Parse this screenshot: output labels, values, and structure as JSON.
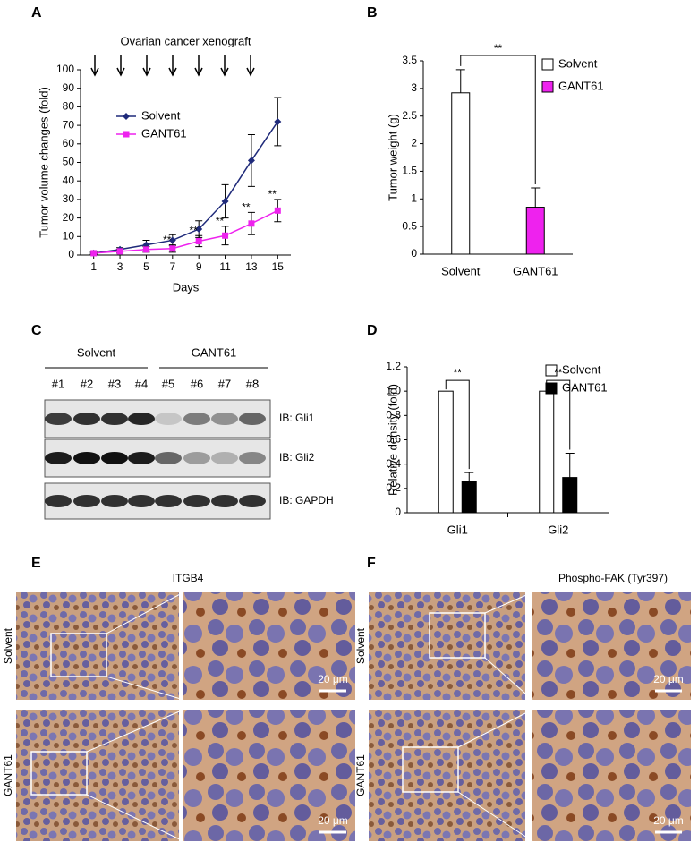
{
  "chart_data": [
    {
      "type": "line",
      "title": "Ovarian cancer xenograft",
      "xlabel": "Days",
      "ylabel": "Tumor volume changes (fold)",
      "x": [
        1,
        3,
        5,
        7,
        9,
        11,
        13,
        15
      ],
      "xlim": [
        0,
        16
      ],
      "xticks": [
        1,
        3,
        5,
        7,
        9,
        11,
        13,
        15
      ],
      "ylim": [
        0,
        100
      ],
      "yticks": [
        0,
        10,
        20,
        30,
        40,
        50,
        60,
        70,
        80,
        90,
        100
      ],
      "series": [
        {
          "name": "Solvent",
          "color": "#1f2a7a",
          "marker": "diamond",
          "values": [
            1,
            3,
            5.5,
            8,
            14,
            29,
            51,
            72
          ],
          "errors": [
            0.5,
            1,
            2.5,
            3,
            4.5,
            9,
            14,
            13
          ]
        },
        {
          "name": "GANT61",
          "color": "#ee22ee",
          "marker": "square",
          "values": [
            1,
            2,
            3,
            3.5,
            7.5,
            10.5,
            17,
            24
          ],
          "errors": [
            0.5,
            1,
            1.5,
            2,
            3,
            5,
            6,
            6
          ]
        }
      ],
      "annotations": [
        null,
        null,
        null,
        "**",
        "**",
        "**",
        "**",
        "**"
      ]
    },
    {
      "type": "bar",
      "ylabel": "Tumor weight (g)",
      "categories": [
        "Solvent",
        "GANT61"
      ],
      "ylim": [
        0,
        3.5
      ],
      "yticks": [
        0,
        0.5,
        1,
        1.5,
        2,
        2.5,
        3,
        3.5
      ],
      "series": [
        {
          "name": "Solvent",
          "color": "#ffffff",
          "values": [
            2.92,
            null
          ],
          "errors": [
            0.42,
            null
          ]
        },
        {
          "name": "GANT61",
          "color": "#ee22ee",
          "values": [
            null,
            0.85
          ],
          "errors": [
            null,
            0.35
          ]
        }
      ],
      "significance": "**"
    },
    {
      "type": "bar",
      "ylabel": "Relative density (fold)",
      "categories": [
        "Gli1",
        "Gli2"
      ],
      "ylim": [
        0,
        1.2
      ],
      "yticks": [
        0,
        0.2,
        0.4,
        0.6,
        0.8,
        {
          "value": 1,
          "label": "1.0"
        },
        1.2
      ],
      "series": [
        {
          "name": "Solvent",
          "color": "#ffffff",
          "values": [
            1,
            1
          ]
        },
        {
          "name": "GANT61",
          "color": "#000000",
          "values": [
            0.26,
            0.29
          ],
          "errors": [
            0.07,
            0.2
          ]
        }
      ],
      "significance": [
        "**",
        "**"
      ]
    }
  ],
  "panel_labels": [
    "A",
    "B",
    "C",
    "D",
    "E",
    "F"
  ],
  "blot": {
    "groups": [
      "Solvent",
      "GANT61"
    ],
    "lanes": [
      "#1",
      "#2",
      "#3",
      "#4",
      "#5",
      "#6",
      "#7",
      "#8"
    ],
    "bands": [
      "IB: Gli1",
      "IB: Gli2",
      "IB: GAPDH"
    ]
  },
  "histology": {
    "titles": [
      "ITGB4",
      "Phospho-FAK (Tyr397)"
    ],
    "rows": [
      "Solvent",
      "GANT61"
    ],
    "scale_bars": [
      "20 μm",
      "20 μm",
      "20 μm",
      "20 μm"
    ]
  }
}
